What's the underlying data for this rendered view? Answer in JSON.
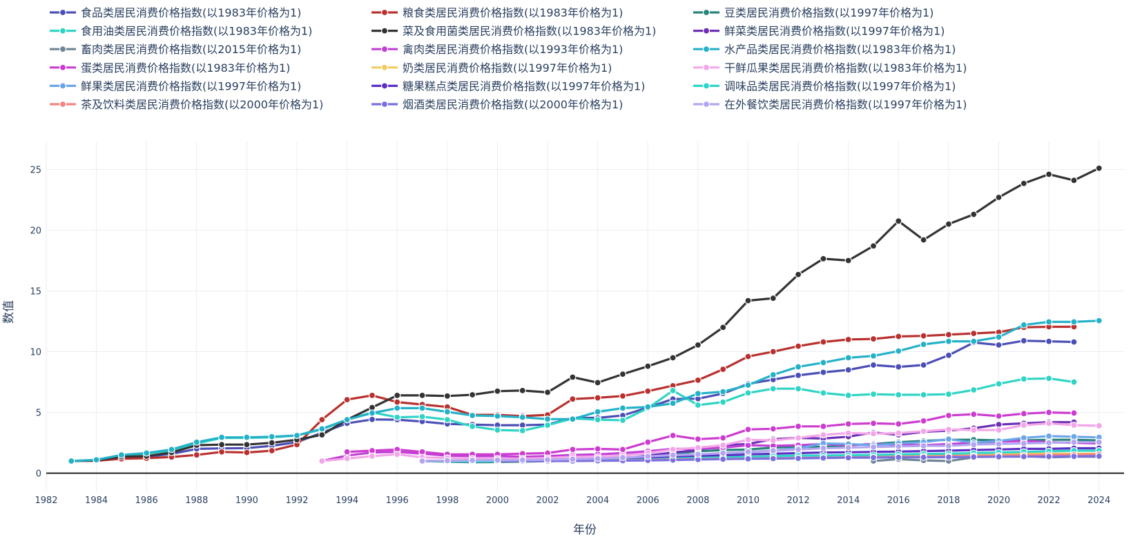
{
  "chart_data": {
    "type": "line",
    "title": "",
    "xlabel": "年份",
    "ylabel": "数值",
    "xlim": [
      1982,
      2025
    ],
    "ylim": [
      -1.5,
      27.3
    ],
    "x_ticks": [
      1982,
      1984,
      1986,
      1988,
      1990,
      1992,
      1994,
      1996,
      1998,
      2000,
      2002,
      2004,
      2006,
      2008,
      2010,
      2012,
      2014,
      2016,
      2018,
      2020,
      2022,
      2024
    ],
    "y_ticks": [
      0,
      5,
      10,
      15,
      20,
      25
    ],
    "grid": true,
    "legend_position": "top",
    "series": [
      {
        "name": "食品类居民消费价格指数(以1983年价格为1)",
        "color": "#4b4fb5",
        "start": 1983,
        "values": [
          1.0,
          1.06,
          1.25,
          1.36,
          1.58,
          2.0,
          2.04,
          2.06,
          2.25,
          2.55,
          3.33,
          4.1,
          4.42,
          4.4,
          4.25,
          4.05,
          4.0,
          3.95,
          3.95,
          4.0,
          4.55,
          4.55,
          4.75,
          5.4,
          6.1,
          6.13,
          6.55,
          7.35,
          7.7,
          8.05,
          8.3,
          8.5,
          8.9,
          8.75,
          8.9,
          9.7,
          10.75,
          10.55,
          10.9,
          10.85,
          10.8
        ]
      },
      {
        "name": "粮食类居民消费价格指数(以1983年价格为1)",
        "color": "#b8312f",
        "start": 1983,
        "values": [
          1.0,
          1.02,
          1.18,
          1.23,
          1.33,
          1.5,
          1.75,
          1.7,
          1.85,
          2.35,
          4.4,
          6.05,
          6.4,
          5.85,
          5.65,
          5.45,
          4.8,
          4.8,
          4.7,
          4.8,
          6.1,
          6.2,
          6.35,
          6.75,
          7.2,
          7.65,
          8.55,
          9.6,
          10.0,
          10.45,
          10.8,
          11.0,
          11.05,
          11.25,
          11.3,
          11.4,
          11.5,
          11.6,
          12.0,
          12.05,
          12.05
        ]
      },
      {
        "name": "豆类居民消费价格指数(以1997年价格为1)",
        "color": "#26847a",
        "start": 1997,
        "values": [
          1.0,
          0.95,
          0.9,
          0.92,
          0.95,
          0.98,
          1.05,
          1.1,
          1.15,
          1.45,
          1.6,
          1.8,
          1.9,
          1.95,
          2.1,
          2.2,
          2.15,
          2.3,
          2.4,
          2.55,
          2.65,
          2.75,
          2.75,
          2.7,
          2.7,
          2.75,
          2.75,
          2.7
        ]
      },
      {
        "name": "食用油类居民消费价格指数(以1983年价格为1)",
        "color": "#2fd4c4",
        "start": 1983,
        "values": [
          1.0,
          1.05,
          1.45,
          1.62,
          1.85,
          2.45,
          2.9,
          2.9,
          2.95,
          3.1,
          3.6,
          4.4,
          5.0,
          4.6,
          4.65,
          4.4,
          3.85,
          3.55,
          3.5,
          3.95,
          4.5,
          4.4,
          4.35,
          5.35,
          6.8,
          5.6,
          5.85,
          6.6,
          6.95,
          6.95,
          6.6,
          6.4,
          6.5,
          6.45,
          6.45,
          6.5,
          6.85,
          7.35,
          7.75,
          7.8,
          7.5
        ]
      },
      {
        "name": "菜及食用菌类居民消费价格指数(以1983年价格为1)",
        "color": "#333333",
        "start": 1983,
        "values": [
          1.0,
          1.05,
          1.35,
          1.4,
          1.7,
          2.3,
          2.35,
          2.35,
          2.5,
          2.75,
          3.15,
          4.4,
          5.4,
          6.4,
          6.4,
          6.35,
          6.45,
          6.75,
          6.8,
          6.65,
          7.9,
          7.45,
          8.15,
          8.8,
          9.5,
          10.55,
          12.0,
          14.2,
          14.4,
          16.35,
          17.65,
          17.5,
          18.7,
          20.75,
          19.2,
          20.5,
          21.3,
          22.7,
          23.85,
          24.6,
          24.1,
          25.1
        ]
      },
      {
        "name": "鲜菜类居民消费价格指数(以1997年价格为1)",
        "color": "#6c2fb5",
        "start": 1997,
        "values": [
          1.0,
          1.0,
          0.98,
          0.97,
          0.98,
          0.98,
          1.05,
          1.1,
          1.2,
          1.45,
          1.7,
          1.9,
          2.3,
          2.4,
          2.8,
          2.9,
          2.85,
          3.0,
          3.35,
          3.15,
          3.4,
          3.5,
          3.7,
          4.0,
          4.1,
          4.2,
          4.2
        ]
      },
      {
        "name": "畜肉类居民消费价格指数(以2015年价格为1)",
        "color": "#6e8596",
        "start": 2015,
        "values": [
          1.0,
          1.15,
          1.05,
          1.0,
          1.3,
          1.6,
          1.4,
          1.3,
          1.35,
          1.35
        ]
      },
      {
        "name": "禽肉类居民消费价格指数(以1993年价格为1)",
        "color": "#c13fd6",
        "start": 1993,
        "values": [
          1.0,
          1.45,
          1.7,
          1.75,
          1.6,
          1.45,
          1.4,
          1.4,
          1.35,
          1.4,
          1.5,
          1.55,
          1.65,
          1.8,
          2.0,
          2.0,
          2.1,
          2.3,
          2.25,
          2.3,
          2.4,
          2.3,
          2.4,
          2.35,
          2.3,
          2.4,
          2.5,
          2.6,
          2.65,
          2.55,
          2.5,
          2.45
        ]
      },
      {
        "name": "水产品类居民消费价格指数(以1983年价格为1)",
        "color": "#24b1c8",
        "start": 1983,
        "values": [
          1.0,
          1.1,
          1.5,
          1.65,
          1.95,
          2.55,
          2.95,
          2.95,
          3.0,
          3.1,
          3.65,
          4.4,
          4.95,
          5.35,
          5.35,
          5.05,
          4.75,
          4.7,
          4.6,
          4.45,
          4.45,
          5.05,
          5.35,
          5.45,
          5.75,
          6.55,
          6.7,
          7.25,
          8.1,
          8.75,
          9.1,
          9.5,
          9.65,
          10.05,
          10.6,
          10.85,
          10.85,
          11.2,
          12.2,
          12.45,
          12.45,
          12.55
        ]
      },
      {
        "name": "蛋类居民消费价格指数(以1983年价格为1)",
        "color": "#cc3ccf",
        "start": 1983,
        "values": [
          null,
          null,
          null,
          null,
          null,
          null,
          null,
          null,
          null,
          null,
          null,
          1.75,
          1.85,
          1.95,
          1.75,
          1.55,
          1.55,
          1.55,
          1.6,
          1.65,
          1.95,
          2.0,
          1.95,
          2.55,
          3.1,
          2.8,
          2.9,
          3.6,
          3.65,
          3.85,
          3.85,
          4.05,
          4.1,
          4.05,
          4.3,
          4.75,
          4.85,
          4.7,
          4.9,
          5.0,
          4.95
        ]
      },
      {
        "name": "奶类居民消费价格指数(以1997年价格为1)",
        "color": "#f2cb5c",
        "start": 1997,
        "values": [
          1.0,
          1.0,
          1.0,
          1.0,
          1.0,
          1.0,
          1.02,
          1.05,
          1.08,
          1.15,
          1.25,
          1.3,
          1.32,
          1.35,
          1.4,
          1.45,
          1.45,
          1.47,
          1.48,
          1.5,
          1.52,
          1.55,
          1.57,
          1.58,
          1.6,
          1.6,
          1.6,
          1.6
        ]
      },
      {
        "name": "干鲜瓜果类居民消费价格指数(以1983年价格为1)",
        "color": "#f4a6e8",
        "start": 1983,
        "values": [
          null,
          null,
          null,
          null,
          null,
          null,
          null,
          null,
          null,
          null,
          1.0,
          1.2,
          1.4,
          1.55,
          1.3,
          1.25,
          1.2,
          1.2,
          1.2,
          1.25,
          1.35,
          1.35,
          1.45,
          1.65,
          1.95,
          2.1,
          2.3,
          2.75,
          2.7,
          2.9,
          3.15,
          3.3,
          3.25,
          3.3,
          3.45,
          3.6,
          3.55,
          3.55,
          3.95,
          4.1,
          3.95,
          3.9
        ]
      },
      {
        "name": "鲜果类居民消费价格指数(以1997年价格为1)",
        "color": "#6aa6e8",
        "start": 1997,
        "values": [
          1.0,
          1.0,
          0.95,
          1.0,
          1.05,
          1.08,
          1.1,
          1.2,
          1.25,
          1.35,
          1.5,
          1.55,
          1.6,
          1.75,
          1.85,
          2.05,
          2.45,
          2.4,
          2.3,
          2.45,
          2.55,
          2.8,
          2.5,
          2.65,
          2.9,
          3.05,
          3.0,
          2.95
        ]
      },
      {
        "name": "糖果糕点类居民消费价格指数(以1997年价格为1)",
        "color": "#5a2fc4",
        "start": 1997,
        "values": [
          1.0,
          1.0,
          1.0,
          1.02,
          1.03,
          1.05,
          1.08,
          1.1,
          1.15,
          1.25,
          1.35,
          1.4,
          1.45,
          1.55,
          1.6,
          1.65,
          1.7,
          1.72,
          1.75,
          1.78,
          1.82,
          1.85,
          1.9,
          1.95,
          2.0,
          2.0,
          2.05,
          2.05
        ]
      },
      {
        "name": "调味品类居民消费价格指数(以1997年价格为1)",
        "color": "#2bd6cc",
        "start": 1997,
        "values": [
          1.0,
          1.0,
          0.98,
          1.0,
          1.0,
          1.0,
          1.02,
          1.05,
          1.08,
          1.12,
          1.2,
          1.25,
          1.3,
          1.35,
          1.4,
          1.45,
          1.45,
          1.48,
          1.5,
          1.55,
          1.58,
          1.6,
          1.65,
          1.7,
          1.75,
          1.8,
          1.85,
          1.85
        ]
      },
      {
        "name": "茶及饮料类居民消费价格指数(以2000年价格为1)",
        "color": "#f28585",
        "start": 2000,
        "values": [
          1.0,
          1.0,
          1.0,
          1.02,
          1.03,
          1.05,
          1.08,
          1.12,
          1.15,
          1.18,
          1.2,
          1.22,
          1.25,
          1.28,
          1.3,
          1.32,
          1.35,
          1.38,
          1.4,
          1.42,
          1.45,
          1.48,
          1.5,
          1.52,
          1.55
        ]
      },
      {
        "name": "烟酒类居民消费价格指数(以2000年价格为1)",
        "color": "#7a6fe0",
        "start": 2000,
        "values": [
          1.0,
          1.0,
          1.0,
          1.0,
          1.02,
          1.03,
          1.05,
          1.08,
          1.12,
          1.15,
          1.18,
          1.2,
          1.22,
          1.25,
          1.27,
          1.28,
          1.3,
          1.3,
          1.32,
          1.33,
          1.35,
          1.36,
          1.37,
          1.38,
          1.4
        ]
      },
      {
        "name": "在外餐饮类居民消费价格指数(以1997年价格为1)",
        "color": "#b3a6f0",
        "start": 1997,
        "values": [
          1.0,
          1.03,
          1.05,
          1.07,
          1.08,
          1.1,
          1.15,
          1.2,
          1.28,
          1.38,
          1.48,
          1.55,
          1.65,
          1.75,
          1.85,
          1.95,
          2.05,
          2.1,
          2.15,
          2.2,
          2.25,
          2.25,
          2.35,
          2.4,
          2.45,
          2.5,
          2.55,
          2.55
        ]
      }
    ]
  }
}
